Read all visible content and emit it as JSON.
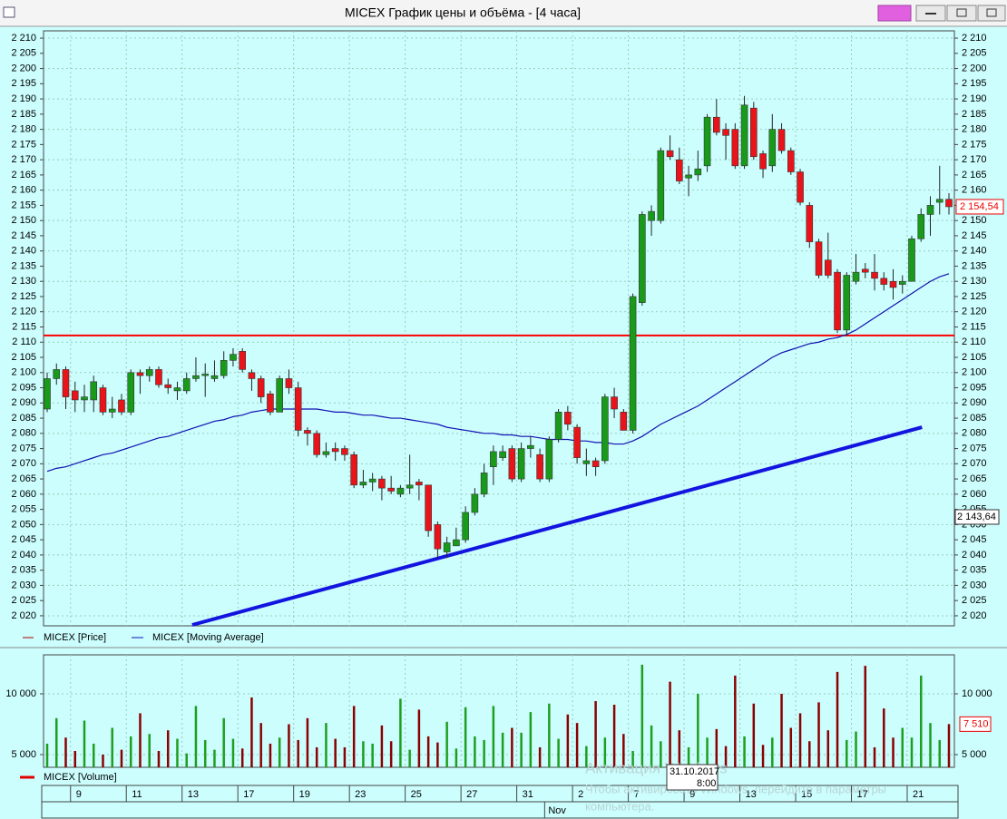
{
  "window_title": "MICEX График цены и объёма - [4 часа]",
  "chart_data": {
    "type": "candlestick",
    "categories": [
      null,
      null,
      null,
      "9",
      null,
      null,
      null,
      null,
      null,
      "11",
      null,
      null,
      null,
      null,
      null,
      "13",
      null,
      null,
      null,
      null,
      null,
      "17",
      null,
      null,
      null,
      null,
      null,
      "19",
      null,
      null,
      null,
      null,
      null,
      "23",
      null,
      null,
      null,
      null,
      null,
      "25",
      null,
      null,
      null,
      null,
      null,
      "27",
      null,
      null,
      null,
      null,
      null,
      "31",
      null,
      null,
      null,
      null,
      null,
      "2",
      null,
      null,
      null,
      null,
      null,
      "7",
      null,
      null,
      null,
      null,
      null,
      "9",
      null,
      null,
      null,
      null,
      null,
      "13",
      null,
      null,
      null,
      null,
      null,
      "15",
      null,
      null,
      null,
      null,
      null,
      "17",
      null,
      null,
      null,
      null,
      null,
      "21",
      null,
      null,
      null,
      null
    ],
    "month_categories": [
      null,
      null,
      null,
      null,
      null,
      null,
      null,
      null,
      null,
      null,
      null,
      null,
      null,
      null,
      null,
      null,
      null,
      null,
      null,
      null,
      null,
      null,
      null,
      null,
      null,
      null,
      null,
      null,
      null,
      null,
      null,
      null,
      null,
      null,
      null,
      null,
      null,
      null,
      null,
      null,
      null,
      null,
      null,
      null,
      null,
      null,
      null,
      null,
      null,
      null,
      null,
      null,
      null,
      null,
      "Nov",
      null,
      null,
      null,
      null,
      null,
      null,
      null,
      null,
      null,
      null,
      null,
      null,
      null,
      null,
      null,
      null,
      null,
      null,
      null,
      null,
      null,
      null,
      null,
      null,
      null,
      null,
      null,
      null,
      null,
      null,
      null,
      null,
      null,
      null,
      null,
      null,
      null,
      null,
      null,
      null,
      null,
      null,
      null
    ],
    "series": [
      {
        "name": "MICEX [Price]",
        "color": "#b00000",
        "up_color": "#1a9a1a",
        "down_color": "#e8141a",
        "open": [
          2088,
          2098,
          2101,
          2094,
          2091,
          2091,
          2095,
          2087,
          2091,
          2087,
          2100,
          2099,
          2101,
          2096,
          2094,
          2094,
          2098,
          2099,
          2098,
          2099,
          2104,
          2107,
          2100,
          2098,
          2093,
          2087,
          2098,
          2095,
          2081,
          2080,
          2073,
          2075,
          2075,
          2073,
          2063,
          2064,
          2065,
          2062,
          2060,
          2062,
          2064,
          2063,
          2050,
          2041,
          2043,
          2045,
          2054,
          2060,
          2069,
          2072,
          2075,
          2065,
          2075,
          2073,
          2065,
          2078,
          2087,
          2082,
          2070,
          2071,
          2071,
          2092,
          2087,
          2081,
          2123,
          2150,
          2150,
          2173,
          2170,
          2164,
          2165,
          2168,
          2184,
          2180,
          2180,
          2168,
          2187,
          2172,
          2168,
          2180,
          2173,
          2166,
          2155,
          2143,
          2137,
          2133,
          2114,
          2130,
          2134,
          2133,
          2131,
          2130,
          2129,
          2130,
          2144,
          2152,
          2156,
          2157
        ],
        "high": [
          2100,
          2103,
          2102,
          2097,
          2096,
          2099,
          2096,
          2092,
          2093,
          2101,
          2101,
          2102,
          2102,
          2098,
          2097,
          2100,
          2105,
          2103,
          2104,
          2107,
          2108,
          2108,
          2101,
          2099,
          2094,
          2099,
          2101,
          2097,
          2082,
          2081,
          2077,
          2077,
          2076,
          2074,
          2068,
          2067,
          2066,
          2066,
          2063,
          2073,
          2065,
          2063,
          2051,
          2046,
          2049,
          2056,
          2062,
          2070,
          2076,
          2076,
          2076,
          2077,
          2079,
          2075,
          2079,
          2088,
          2089,
          2083,
          2075,
          2072,
          2093,
          2095,
          2088,
          2126,
          2153,
          2155,
          2174,
          2178,
          2174,
          2168,
          2173,
          2185,
          2190,
          2182,
          2182,
          2191,
          2189,
          2173,
          2185,
          2182,
          2174,
          2167,
          2156,
          2144,
          2146,
          2134,
          2133,
          2139,
          2136,
          2139,
          2133,
          2134,
          2132,
          2145,
          2154,
          2158,
          2168,
          2159
        ],
        "low": [
          2087,
          2096,
          2088,
          2087,
          2087,
          2087,
          2086,
          2085,
          2086,
          2086,
          2093,
          2097,
          2095,
          2093,
          2091,
          2093,
          2097,
          2092,
          2097,
          2098,
          2102,
          2100,
          2094,
          2090,
          2086,
          2087,
          2093,
          2079,
          2076,
          2072,
          2072,
          2071,
          2071,
          2062,
          2062,
          2061,
          2058,
          2060,
          2059,
          2060,
          2058,
          2046,
          2039,
          2039,
          2043,
          2044,
          2053,
          2059,
          2063,
          2071,
          2064,
          2064,
          2072,
          2064,
          2064,
          2077,
          2081,
          2070,
          2066,
          2066,
          2070,
          2085,
          2081,
          2080,
          2122,
          2145,
          2149,
          2170,
          2162,
          2158,
          2163,
          2166,
          2178,
          2170,
          2167,
          2167,
          2170,
          2164,
          2166,
          2172,
          2165,
          2155,
          2141,
          2131,
          2131,
          2113,
          2112,
          2129,
          2131,
          2127,
          2127,
          2124,
          2126,
          2130,
          2143,
          2145,
          2152,
          2152
        ],
        "close": [
          2098,
          2101,
          2092,
          2091,
          2092,
          2097,
          2087,
          2088,
          2087,
          2100,
          2099,
          2101,
          2096,
          2095,
          2095,
          2098,
          2099,
          2099.5,
          2099,
          2104,
          2106,
          2101,
          2098,
          2092,
          2087,
          2098,
          2095,
          2081,
          2080,
          2073,
          2074,
          2074,
          2073,
          2063,
          2064,
          2065,
          2062,
          2061,
          2062,
          2063,
          2063,
          2048,
          2042,
          2044,
          2045,
          2054,
          2060,
          2067,
          2074,
          2074,
          2065,
          2075,
          2076,
          2065,
          2078,
          2087,
          2083,
          2072,
          2071,
          2069,
          2092,
          2088,
          2081,
          2125,
          2152,
          2153,
          2173,
          2171,
          2163,
          2165,
          2167,
          2184,
          2179,
          2178,
          2168,
          2188,
          2171,
          2167,
          2180,
          2173,
          2166,
          2156,
          2143,
          2132,
          2132,
          2114,
          2132,
          2133,
          2133,
          2131,
          2129,
          2128,
          2130,
          2144,
          2152,
          2155,
          2157,
          2154.54
        ],
        "last_close_label": "2 154,54"
      },
      {
        "name": "MICEX [Moving Average]",
        "color": "#1010b0",
        "values": [
          2067.5,
          2068.5,
          2069,
          2070,
          2071,
          2072,
          2073,
          2073.5,
          2074.5,
          2075.5,
          2076.5,
          2077.5,
          2078.5,
          2079,
          2080,
          2081,
          2082,
          2083,
          2084,
          2084.5,
          2085.5,
          2086,
          2087,
          2087.5,
          2088,
          2088,
          2088,
          2088,
          2088,
          2088,
          2087.5,
          2087,
          2087,
          2086.5,
          2086,
          2086,
          2085.5,
          2085,
          2085,
          2084.5,
          2084,
          2083.5,
          2083,
          2082,
          2081.5,
          2081,
          2080.5,
          2080,
          2080,
          2079.5,
          2079.5,
          2079,
          2079,
          2078.5,
          2078,
          2078,
          2078,
          2077.5,
          2077.5,
          2077,
          2077,
          2076.5,
          2076.5,
          2077.5,
          2079,
          2081,
          2083,
          2084.5,
          2086,
          2087.5,
          2089,
          2091,
          2093,
          2095,
          2097,
          2099,
          2101,
          2103,
          2105,
          2106.5,
          2107.5,
          2108.5,
          2109.5,
          2110,
          2111,
          2111.5,
          2112.5,
          2114,
          2116,
          2118,
          2120,
          2122,
          2124,
          2126,
          2128,
          2130,
          2131.5,
          2132.5
        ]
      },
      {
        "name": "MICEX [Volume]",
        "color": "#e00000",
        "axis": "y2",
        "up_color": "#1e9e1e",
        "down_color": "#8b0000",
        "values": [
          5900,
          8000,
          6400,
          5300,
          7800,
          5900,
          5000,
          7200,
          5400,
          6500,
          8400,
          6700,
          5300,
          7000,
          6300,
          5100,
          9000,
          6200,
          5400,
          8000,
          6300,
          5500,
          9700,
          7600,
          5900,
          6400,
          7500,
          6200,
          8000,
          5600,
          7600,
          6300,
          5600,
          9000,
          6100,
          5900,
          7400,
          6100,
          9600,
          5400,
          8700,
          6500,
          6000,
          7700,
          5500,
          8900,
          6500,
          6200,
          9000,
          6800,
          7200,
          6800,
          8500,
          5600,
          9200,
          6300,
          8300,
          7600,
          5700,
          9400,
          6400,
          9100,
          6700,
          5300,
          12400,
          7400,
          6100,
          11000,
          7000,
          5600,
          10000,
          6400,
          7100,
          5700,
          11500,
          6500,
          9200,
          5800,
          6400,
          10000,
          7200,
          8400,
          6100,
          9300,
          7000,
          11800,
          6200,
          6900,
          12300,
          5600,
          8800,
          6400,
          7200,
          6400,
          11500,
          7600,
          6200,
          7510
        ],
        "last_value_label": "7 510"
      }
    ],
    "ylim": [
      2016.7,
      2212.4
    ],
    "yticks": [
      {
        "value": 2020,
        "label": "2 020"
      },
      {
        "value": 2025,
        "label": "2 025"
      },
      {
        "value": 2030,
        "label": "2 030"
      },
      {
        "value": 2035,
        "label": "2 035"
      },
      {
        "value": 2040,
        "label": "2 040"
      },
      {
        "value": 2045,
        "label": "2 045"
      },
      {
        "value": 2050,
        "label": "2 050"
      },
      {
        "value": 2055,
        "label": "2 055"
      },
      {
        "value": 2060,
        "label": "2 060"
      },
      {
        "value": 2065,
        "label": "2 065"
      },
      {
        "value": 2070,
        "label": "2 070"
      },
      {
        "value": 2075,
        "label": "2 075"
      },
      {
        "value": 2080,
        "label": "2 080"
      },
      {
        "value": 2085,
        "label": "2 085"
      },
      {
        "value": 2090,
        "label": "2 090"
      },
      {
        "value": 2095,
        "label": "2 095"
      },
      {
        "value": 2100,
        "label": "2 100"
      },
      {
        "value": 2105,
        "label": "2 105"
      },
      {
        "value": 2110,
        "label": "2 110"
      },
      {
        "value": 2115,
        "label": "2 115"
      },
      {
        "value": 2120,
        "label": "2 120"
      },
      {
        "value": 2125,
        "label": "2 125"
      },
      {
        "value": 2130,
        "label": "2 130"
      },
      {
        "value": 2135,
        "label": "2 135"
      },
      {
        "value": 2140,
        "label": "2 140"
      },
      {
        "value": 2145,
        "label": "2 145"
      },
      {
        "value": 2150,
        "label": "2 150"
      },
      {
        "value": 2155,
        "label": "2 155"
      },
      {
        "value": 2160,
        "label": "2 160"
      },
      {
        "value": 2165,
        "label": "2 165"
      },
      {
        "value": 2170,
        "label": "2 170"
      },
      {
        "value": 2175,
        "label": "2 175"
      },
      {
        "value": 2180,
        "label": "2 180"
      },
      {
        "value": 2185,
        "label": "2 185"
      },
      {
        "value": 2190,
        "label": "2 190"
      },
      {
        "value": 2195,
        "label": "2 195"
      },
      {
        "value": 2200,
        "label": "2 200"
      },
      {
        "value": 2205,
        "label": "2 205"
      },
      {
        "value": 2210,
        "label": "2 210"
      }
    ],
    "y2lim": [
      3955,
      13209
    ],
    "y2ticks": [
      {
        "value": 5000,
        "label": "5 000"
      },
      {
        "value": 10000,
        "label": "10 000"
      }
    ],
    "grid": true,
    "level_line": {
      "value": 2112.2,
      "color": "#ff0000"
    },
    "trendline": {
      "x": [
        15.6,
        94.1
      ],
      "values": [
        2017,
        2082
      ],
      "color": "#1414e0"
    },
    "cursor": {
      "price": "2 143,64",
      "date": "31.10.2017",
      "time": "8:00"
    }
  },
  "watermark": {
    "title": "Активация Windows",
    "line1": "Чтобы активировать Windows, перейдите в параметры",
    "line2": "компьютера."
  }
}
